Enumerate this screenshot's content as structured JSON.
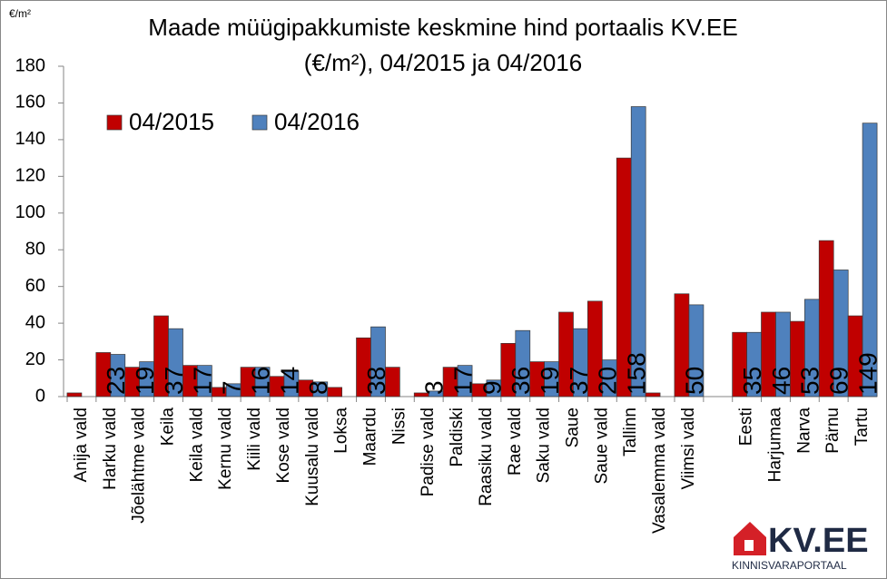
{
  "chart_data": {
    "type": "bar",
    "unit_label": "€/m²",
    "title": "Maade müügipakkumiste keskmine hind portaalis KV.EE",
    "subtitle": "(€/m²), 04/2015 ja 04/2016",
    "categories": [
      "Anija vald",
      "Harku vald",
      "Jõelähtme vald",
      "Keila",
      "Keila vald",
      "Kernu vald",
      "Kiili vald",
      "Kose vald",
      "Kuusalu vald",
      "Loksa",
      "Maardu",
      "Nissi",
      "Padise vald",
      "Paldiski",
      "Raasiku vald",
      "Rae vald",
      "Saku vald",
      "Saue",
      "Saue vald",
      "Tallinn",
      "Vasalemma vald",
      "Viimsi vald",
      null,
      "Eesti",
      "Harjumaa",
      "Narva",
      "Pärnu",
      "Tartu"
    ],
    "series": [
      {
        "name": "04/2015",
        "color": "#c00000",
        "values": [
          2,
          24,
          16,
          44,
          17,
          5,
          16,
          11,
          9,
          5,
          32,
          16,
          2,
          16,
          7,
          29,
          19,
          46,
          52,
          130,
          2,
          56,
          null,
          35,
          46,
          41,
          85,
          44
        ]
      },
      {
        "name": "04/2016",
        "color": "#4f81bd",
        "data_labels": true,
        "values": [
          null,
          23,
          19,
          37,
          17,
          7,
          16,
          14,
          8,
          null,
          38,
          null,
          3,
          17,
          9,
          36,
          19,
          37,
          20,
          158,
          null,
          50,
          null,
          35,
          46,
          53,
          69,
          149
        ]
      }
    ],
    "ylim": [
      0,
      180
    ],
    "yticks": [
      0,
      20,
      40,
      60,
      80,
      100,
      120,
      140,
      160,
      180
    ],
    "grid": false,
    "legend": "upper left",
    "logo": {
      "name": "KV.EE",
      "tagline": "KINNISVARAPORTAAL"
    }
  }
}
